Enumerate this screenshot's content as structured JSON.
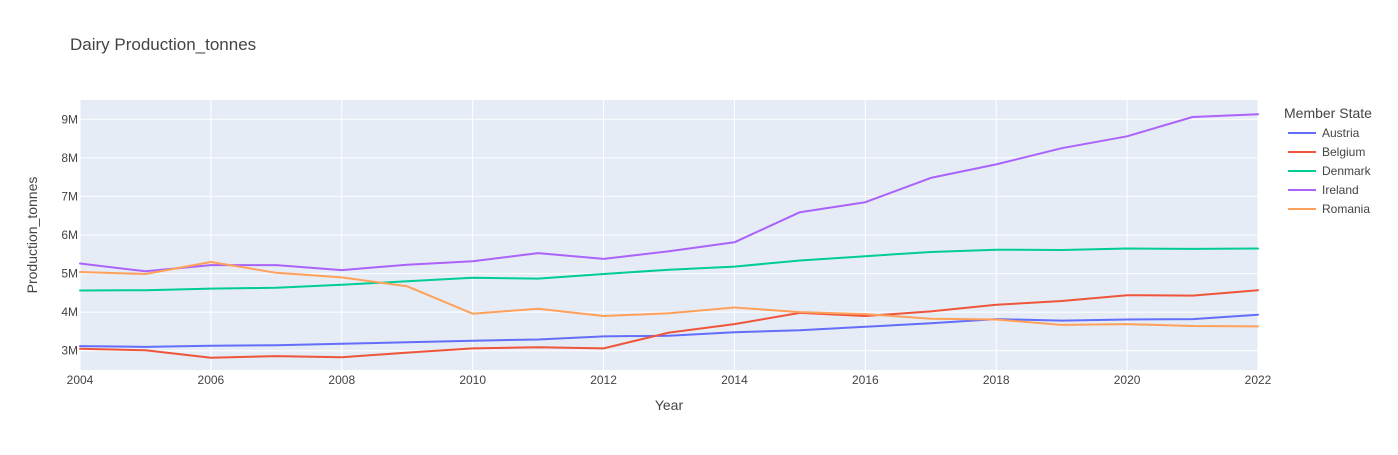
{
  "chart_data": {
    "type": "line",
    "title": "Dairy Production_tonnes",
    "xlabel": "Year",
    "ylabel": "Production_tonnes",
    "xlim": [
      2004,
      2022
    ],
    "ylim": [
      2500000,
      9500000
    ],
    "x_ticks": [
      2004,
      2006,
      2008,
      2010,
      2012,
      2014,
      2016,
      2018,
      2020,
      2022
    ],
    "x_tick_labels": [
      "2004",
      "2006",
      "2008",
      "2010",
      "2012",
      "2014",
      "2016",
      "2018",
      "2020",
      "2022"
    ],
    "y_ticks": [
      3000000,
      4000000,
      5000000,
      6000000,
      7000000,
      8000000,
      9000000
    ],
    "y_tick_labels": [
      "3M",
      "4M",
      "5M",
      "6M",
      "7M",
      "8M",
      "9M"
    ],
    "grid": true,
    "legend_title": "Member State",
    "legend_position": "right",
    "x": [
      2004,
      2005,
      2006,
      2007,
      2008,
      2009,
      2010,
      2011,
      2012,
      2013,
      2014,
      2015,
      2016,
      2017,
      2018,
      2019,
      2020,
      2021,
      2022
    ],
    "series": [
      {
        "name": "Austria",
        "color": "#636efa",
        "values": [
          3120000,
          3100000,
          3130000,
          3140000,
          3180000,
          3220000,
          3260000,
          3290000,
          3370000,
          3390000,
          3480000,
          3530000,
          3620000,
          3710000,
          3820000,
          3780000,
          3810000,
          3820000,
          3930000
        ]
      },
      {
        "name": "Belgium",
        "color": "#EF553B",
        "values": [
          3050000,
          3010000,
          2820000,
          2860000,
          2830000,
          2950000,
          3060000,
          3090000,
          3060000,
          3470000,
          3690000,
          3980000,
          3900000,
          4020000,
          4190000,
          4290000,
          4440000,
          4430000,
          4570000
        ]
      },
      {
        "name": "Denmark",
        "color": "#00cc96",
        "values": [
          4560000,
          4570000,
          4610000,
          4630000,
          4710000,
          4800000,
          4890000,
          4870000,
          4990000,
          5100000,
          5180000,
          5340000,
          5450000,
          5560000,
          5620000,
          5610000,
          5650000,
          5640000,
          5650000
        ]
      },
      {
        "name": "Ireland",
        "color": "#ab63fa",
        "values": [
          5260000,
          5060000,
          5220000,
          5220000,
          5090000,
          5230000,
          5320000,
          5530000,
          5380000,
          5580000,
          5810000,
          6590000,
          6850000,
          7480000,
          7830000,
          8250000,
          8560000,
          9060000,
          9130000
        ]
      },
      {
        "name": "Romania",
        "color": "#FFA15A",
        "values": [
          5040000,
          4990000,
          5300000,
          5020000,
          4900000,
          4670000,
          3960000,
          4090000,
          3900000,
          3970000,
          4120000,
          4000000,
          3950000,
          3830000,
          3810000,
          3670000,
          3690000,
          3640000,
          3630000
        ]
      }
    ]
  }
}
